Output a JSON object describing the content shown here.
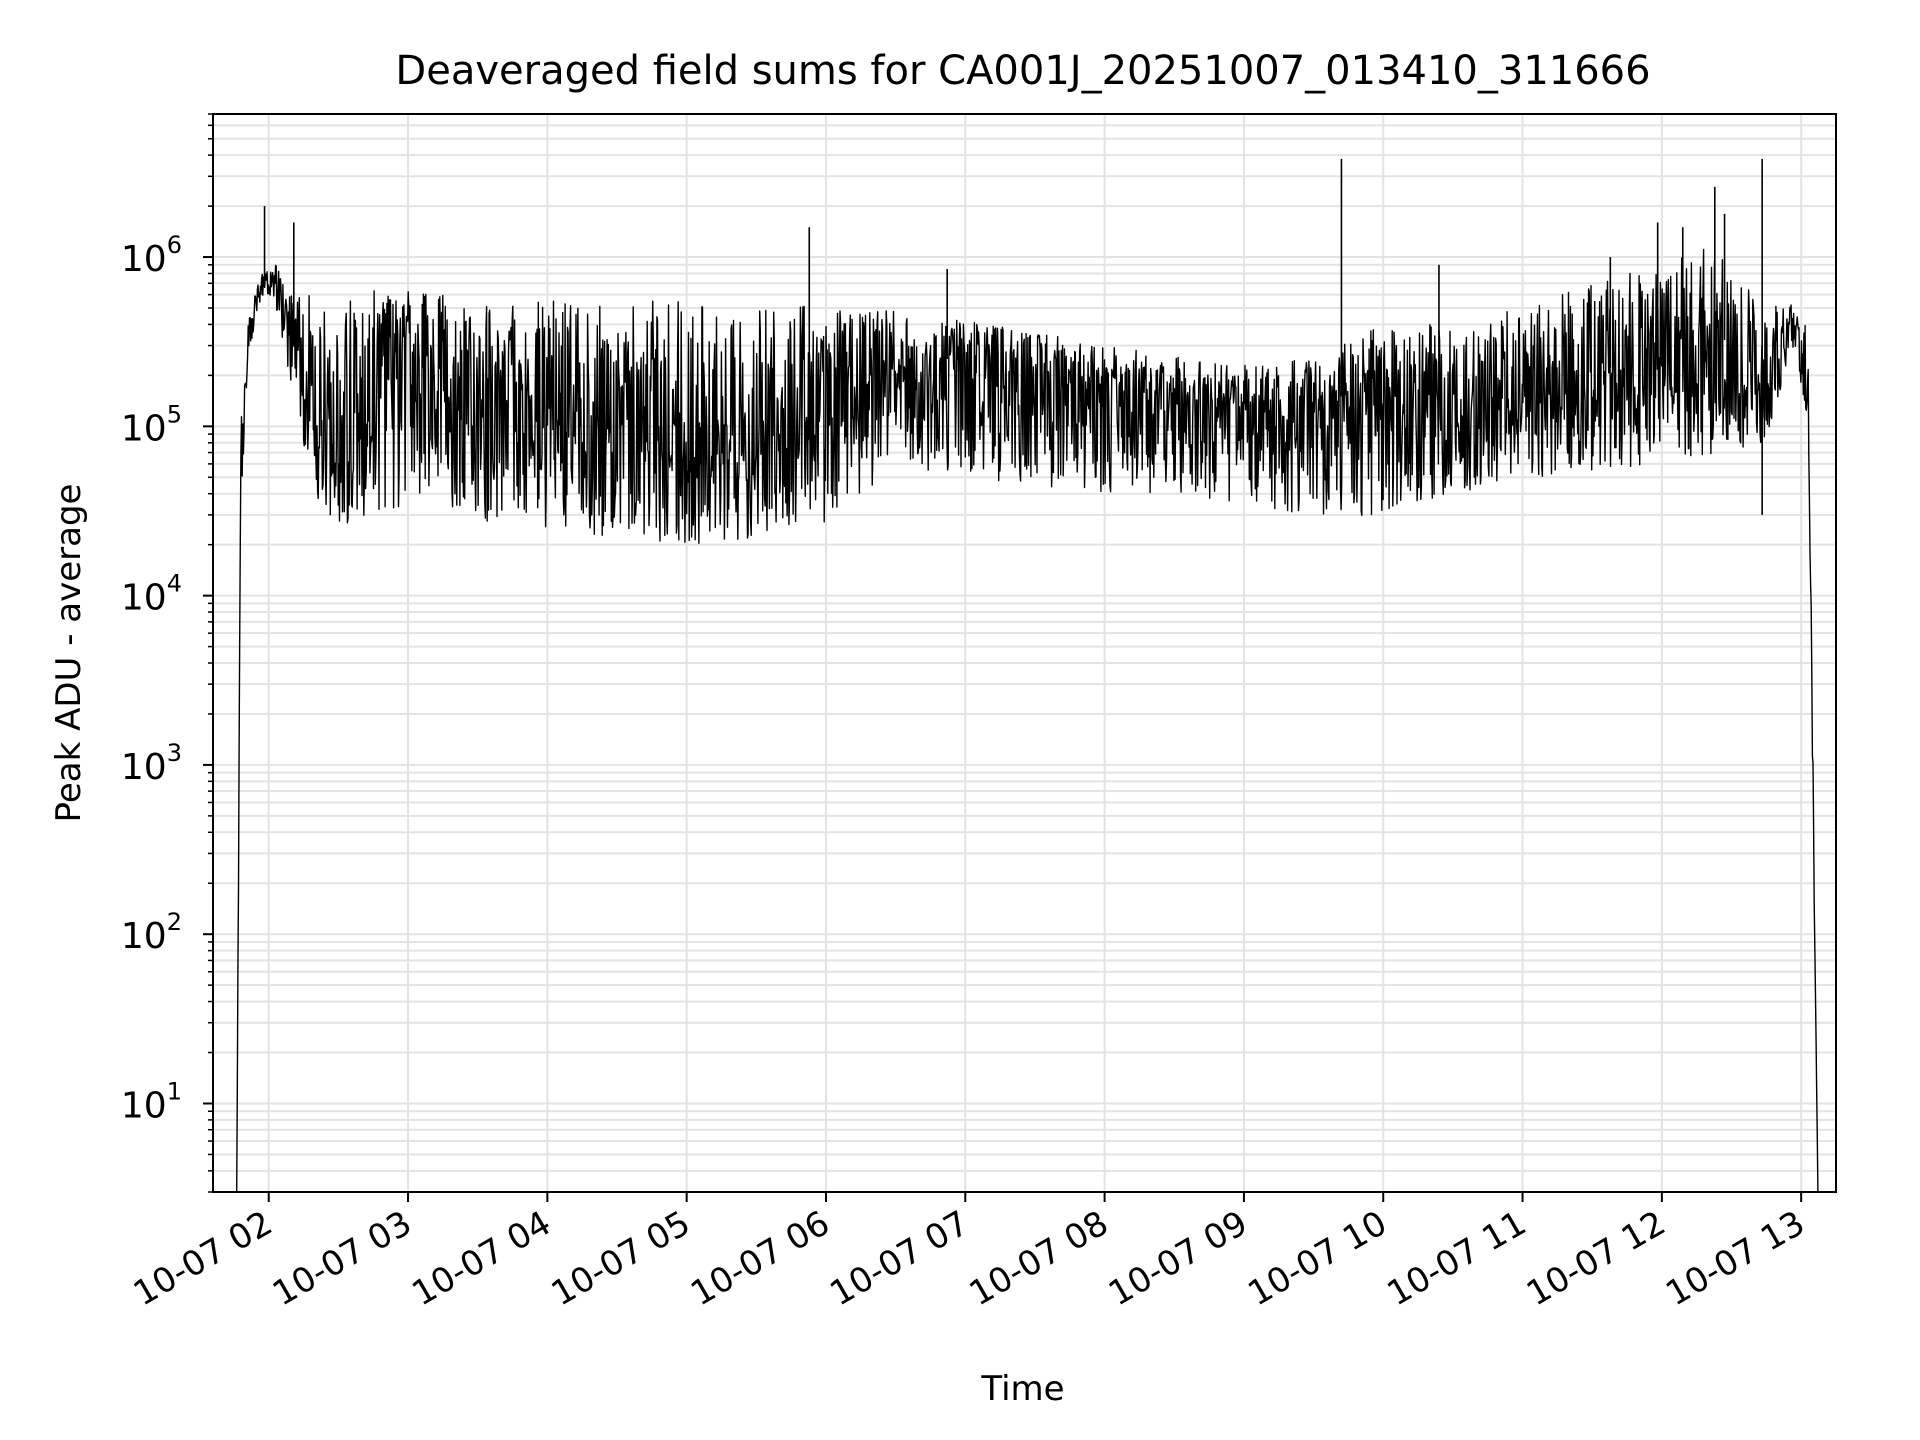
{
  "chart_data": {
    "type": "line",
    "title": "Deaveraged field sums for CA001J_20251007_013410_311666",
    "xlabel": "Time",
    "ylabel": "Peak ADU - average",
    "yscale": "log",
    "ylim": [
      3,
      7000000
    ],
    "xlim_hours": [
      1.6,
      13.25
    ],
    "x_ticks": [
      {
        "hour": 2,
        "label": "10-07 02"
      },
      {
        "hour": 3,
        "label": "10-07 03"
      },
      {
        "hour": 4,
        "label": "10-07 04"
      },
      {
        "hour": 5,
        "label": "10-07 05"
      },
      {
        "hour": 6,
        "label": "10-07 06"
      },
      {
        "hour": 7,
        "label": "10-07 07"
      },
      {
        "hour": 8,
        "label": "10-07 08"
      },
      {
        "hour": 9,
        "label": "10-07 09"
      },
      {
        "hour": 10,
        "label": "10-07 10"
      },
      {
        "hour": 11,
        "label": "10-07 11"
      },
      {
        "hour": 12,
        "label": "10-07 12"
      },
      {
        "hour": 13,
        "label": "10-07 13"
      }
    ],
    "y_ticks": [
      {
        "exp": 1,
        "base": "10",
        "sup": "1"
      },
      {
        "exp": 2,
        "base": "10",
        "sup": "2"
      },
      {
        "exp": 3,
        "base": "10",
        "sup": "3"
      },
      {
        "exp": 4,
        "base": "10",
        "sup": "4"
      },
      {
        "exp": 5,
        "base": "10",
        "sup": "5"
      },
      {
        "exp": 6,
        "base": "10",
        "sup": "6"
      }
    ],
    "grid": true,
    "line_color": "#000000",
    "series": [
      {
        "name": "Deaveraged field sum",
        "envelope": [
          {
            "hour": 1.77,
            "upper": 3,
            "baseline": 3,
            "lower": 3
          },
          {
            "hour": 1.8,
            "upper": 100000,
            "baseline": 60000,
            "lower": 30000
          },
          {
            "hour": 1.85,
            "upper": 400000,
            "baseline": 300000,
            "lower": 250000
          },
          {
            "hour": 1.95,
            "upper": 900000,
            "baseline": 750000,
            "lower": 600000
          },
          {
            "hour": 2.05,
            "upper": 900000,
            "baseline": 700000,
            "lower": 500000
          },
          {
            "hour": 2.15,
            "upper": 600000,
            "baseline": 350000,
            "lower": 200000
          },
          {
            "hour": 2.25,
            "upper": 600000,
            "baseline": 200000,
            "lower": 60000
          },
          {
            "hour": 2.4,
            "upper": 600000,
            "baseline": 70000,
            "lower": 30000
          },
          {
            "hour": 2.6,
            "upper": 620000,
            "baseline": 90000,
            "lower": 25000
          },
          {
            "hour": 2.9,
            "upper": 650000,
            "baseline": 300000,
            "lower": 30000
          },
          {
            "hour": 3.2,
            "upper": 600000,
            "baseline": 300000,
            "lower": 40000
          },
          {
            "hour": 3.5,
            "upper": 600000,
            "baseline": 150000,
            "lower": 25000
          },
          {
            "hour": 4.0,
            "upper": 580000,
            "baseline": 130000,
            "lower": 25000
          },
          {
            "hour": 4.5,
            "upper": 560000,
            "baseline": 100000,
            "lower": 22000
          },
          {
            "hour": 5.0,
            "upper": 550000,
            "baseline": 70000,
            "lower": 20000
          },
          {
            "hour": 5.5,
            "upper": 540000,
            "baseline": 90000,
            "lower": 22000
          },
          {
            "hour": 6.0,
            "upper": 520000,
            "baseline": 150000,
            "lower": 25000
          },
          {
            "hour": 6.5,
            "upper": 480000,
            "baseline": 250000,
            "lower": 60000
          },
          {
            "hour": 7.0,
            "upper": 420000,
            "baseline": 250000,
            "lower": 50000
          },
          {
            "hour": 7.5,
            "upper": 360000,
            "baseline": 220000,
            "lower": 45000
          },
          {
            "hour": 8.0,
            "upper": 300000,
            "baseline": 180000,
            "lower": 40000
          },
          {
            "hour": 8.5,
            "upper": 260000,
            "baseline": 150000,
            "lower": 40000
          },
          {
            "hour": 9.0,
            "upper": 230000,
            "baseline": 130000,
            "lower": 35000
          },
          {
            "hour": 9.5,
            "upper": 250000,
            "baseline": 150000,
            "lower": 28000
          },
          {
            "hour": 10.0,
            "upper": 400000,
            "baseline": 150000,
            "lower": 30000
          },
          {
            "hour": 10.5,
            "upper": 400000,
            "baseline": 150000,
            "lower": 40000
          },
          {
            "hour": 11.0,
            "upper": 500000,
            "baseline": 180000,
            "lower": 45000
          },
          {
            "hour": 11.5,
            "upper": 700000,
            "baseline": 200000,
            "lower": 50000
          },
          {
            "hour": 12.0,
            "upper": 900000,
            "baseline": 300000,
            "lower": 60000
          },
          {
            "hour": 12.4,
            "upper": 1200000,
            "baseline": 350000,
            "lower": 70000
          },
          {
            "hour": 12.75,
            "upper": 500000,
            "baseline": 200000,
            "lower": 80000
          },
          {
            "hour": 12.95,
            "upper": 550000,
            "baseline": 450000,
            "lower": 300000
          },
          {
            "hour": 13.05,
            "upper": 400000,
            "baseline": 200000,
            "lower": 100000
          },
          {
            "hour": 13.12,
            "upper": 3,
            "baseline": 3,
            "lower": 3
          }
        ],
        "spikes": [
          {
            "hour": 1.97,
            "value": 2000000
          },
          {
            "hour": 2.18,
            "value": 1600000
          },
          {
            "hour": 5.88,
            "value": 1500000
          },
          {
            "hour": 6.87,
            "value": 850000
          },
          {
            "hour": 9.7,
            "value": 3800000
          },
          {
            "hour": 10.4,
            "value": 900000
          },
          {
            "hour": 11.63,
            "value": 1000000
          },
          {
            "hour": 11.97,
            "value": 1600000
          },
          {
            "hour": 12.15,
            "value": 1500000
          },
          {
            "hour": 12.38,
            "value": 2600000
          },
          {
            "hour": 12.45,
            "value": 1800000
          },
          {
            "hour": 12.72,
            "value": 3800000
          },
          {
            "hour": 12.72,
            "value": 30000
          }
        ]
      }
    ]
  }
}
